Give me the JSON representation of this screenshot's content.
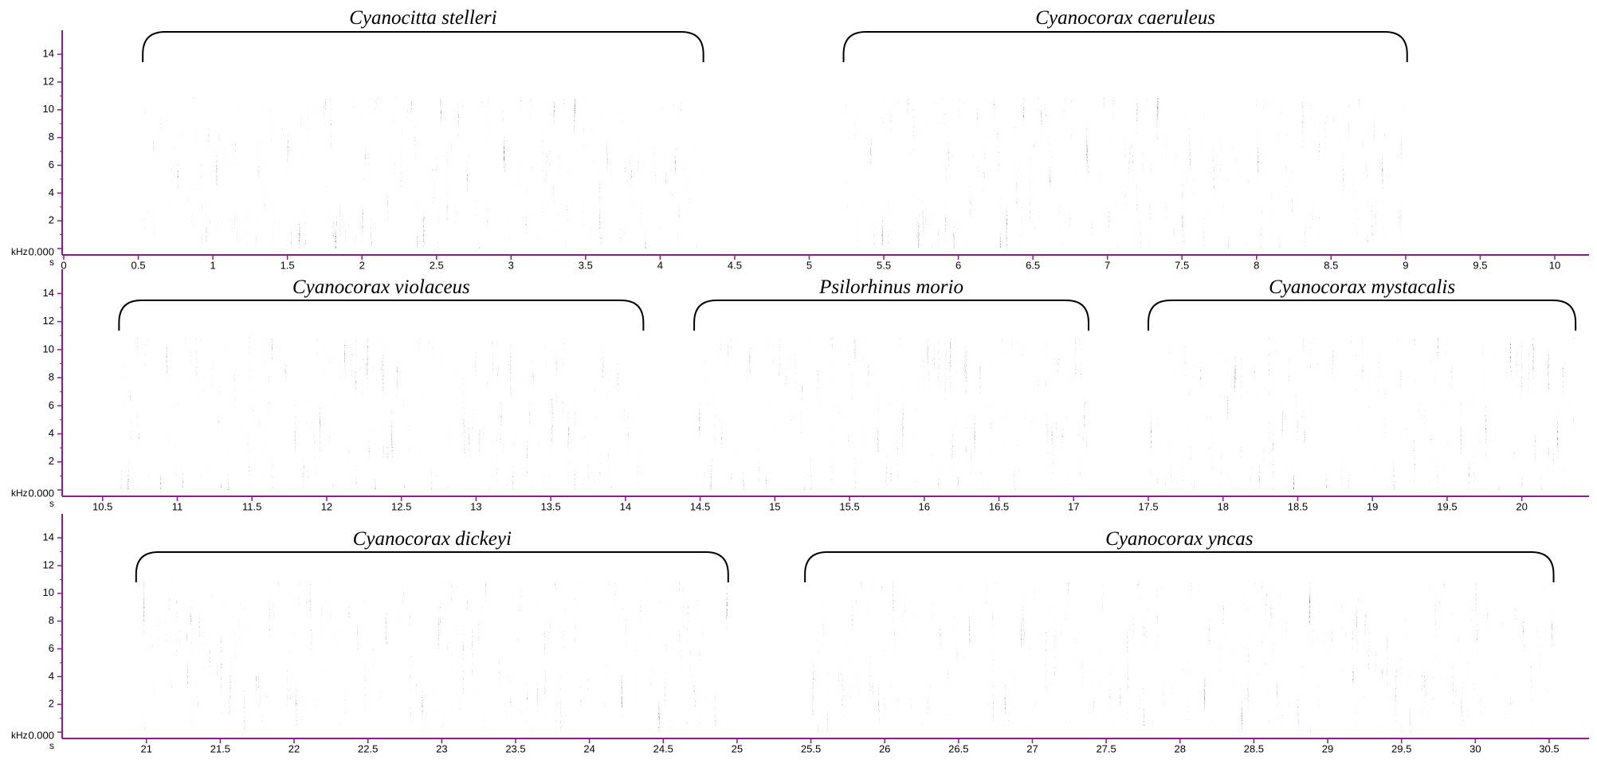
{
  "chart_data": [
    {
      "type": "spectrogram",
      "y_label": "kHz",
      "x_label": "s",
      "xlim": [
        0,
        10.23
      ],
      "ylim": [
        0,
        15.5
      ],
      "xticks": [
        0,
        0.5,
        1,
        1.5,
        2,
        2.5,
        3,
        3.5,
        4,
        4.5,
        5,
        5.5,
        6,
        6.5,
        7,
        7.5,
        8,
        8.5,
        9,
        9.5,
        10
      ],
      "yticks": [
        {
          "value": 0,
          "label": "0.000"
        },
        2,
        4,
        6,
        8,
        10,
        12,
        14
      ],
      "annotations": [
        {
          "label": "Cyanocitta stelleri",
          "start": 0.53,
          "end": 4.29
        },
        {
          "label": "Cyanocorax caeruleus",
          "start": 5.23,
          "end": 9.01
        }
      ]
    },
    {
      "type": "spectrogram",
      "y_label": "kHz",
      "x_label": "s",
      "xlim": [
        10.24,
        20.45
      ],
      "ylim": [
        0,
        15.5
      ],
      "xticks": [
        10.5,
        11,
        11.5,
        12,
        12.5,
        13,
        13.5,
        14,
        14.5,
        15,
        15.5,
        16,
        16.5,
        17,
        17.5,
        18,
        18.5,
        19,
        19.5,
        20
      ],
      "yticks": [
        {
          "value": 0,
          "label": "0.000"
        },
        2,
        4,
        6,
        8,
        10,
        12,
        14
      ],
      "annotations": [
        {
          "label": "Cyanocorax violaceus",
          "start": 10.61,
          "end": 14.12
        },
        {
          "label": "Psilorhinus morio",
          "start": 14.46,
          "end": 17.1
        },
        {
          "label": "Cyanocorax mystacalis",
          "start": 17.5,
          "end": 20.36
        }
      ]
    },
    {
      "type": "spectrogram",
      "y_label": "kHz",
      "x_label": "s",
      "xlim": [
        20.44,
        30.77
      ],
      "ylim": [
        0,
        15.5
      ],
      "xticks": [
        21,
        21.5,
        22,
        22.5,
        23,
        23.5,
        24,
        24.5,
        25,
        25.5,
        26,
        26.5,
        27,
        27.5,
        28,
        28.5,
        29,
        29.5,
        30,
        30.5
      ],
      "yticks": [
        {
          "value": 0,
          "label": "0.000"
        },
        2,
        4,
        6,
        8,
        10,
        12,
        14
      ],
      "annotations": [
        {
          "label": "Cyanocorax dickeyi",
          "start": 20.93,
          "end": 24.94
        },
        {
          "label": "Cyanocorax yncas",
          "start": 25.46,
          "end": 30.53
        }
      ]
    }
  ]
}
